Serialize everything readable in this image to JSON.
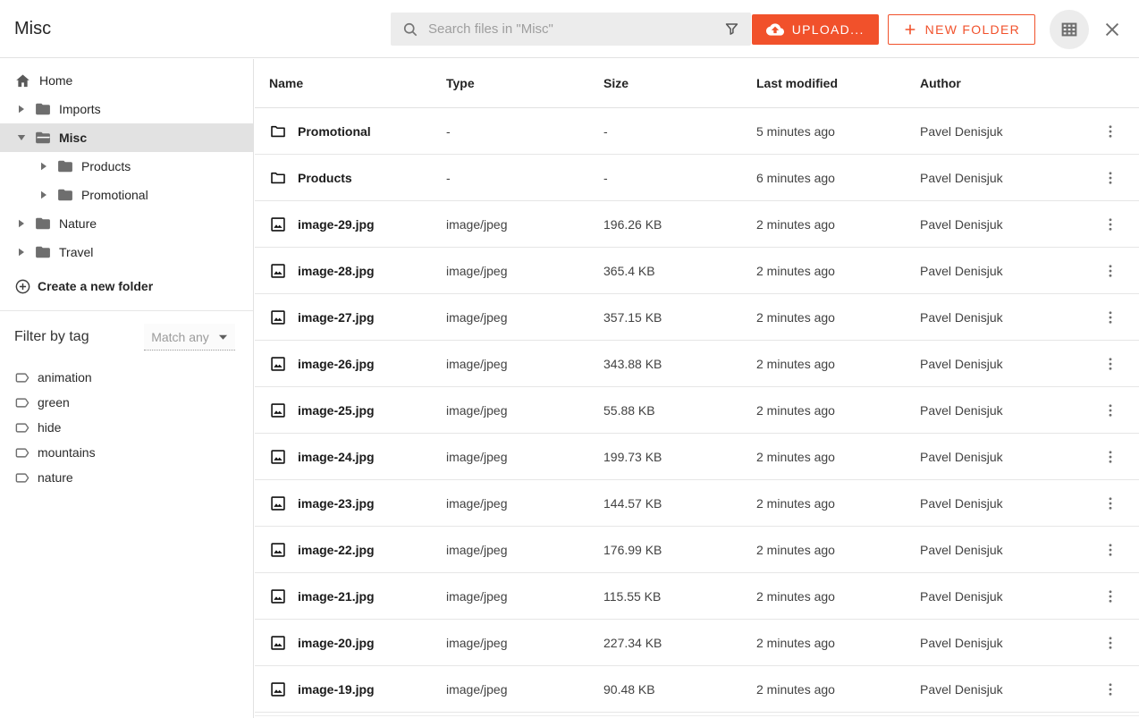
{
  "topbar": {
    "title": "Misc",
    "search_placeholder": "Search files in \"Misc\"",
    "upload_label": "UPLOAD...",
    "new_folder_label": "NEW FOLDER"
  },
  "sidebar": {
    "tree": [
      {
        "label": "Home",
        "icon": "home",
        "caret": "none",
        "depth": 0,
        "selected": false
      },
      {
        "label": "Imports",
        "icon": "folder",
        "caret": "right",
        "depth": 1,
        "selected": false
      },
      {
        "label": "Misc",
        "icon": "folder-open",
        "caret": "down",
        "depth": 1,
        "selected": true
      },
      {
        "label": "Products",
        "icon": "folder",
        "caret": "right",
        "depth": 2,
        "selected": false
      },
      {
        "label": "Promotional",
        "icon": "folder",
        "caret": "right",
        "depth": 2,
        "selected": false
      },
      {
        "label": "Nature",
        "icon": "folder",
        "caret": "right",
        "depth": 1,
        "selected": false
      },
      {
        "label": "Travel",
        "icon": "folder",
        "caret": "right",
        "depth": 1,
        "selected": false
      }
    ],
    "create_folder_label": "Create a new folder",
    "filter_by_tag_label": "Filter by tag",
    "tag_match_mode": "Match any",
    "tags": [
      "animation",
      "green",
      "hide",
      "mountains",
      "nature"
    ]
  },
  "table": {
    "columns": [
      "Name",
      "Type",
      "Size",
      "Last modified",
      "Author"
    ],
    "rows": [
      {
        "name": "Promotional",
        "kind": "folder",
        "type": "-",
        "size": "-",
        "modified": "5 minutes ago",
        "author": "Pavel Denisjuk"
      },
      {
        "name": "Products",
        "kind": "folder",
        "type": "-",
        "size": "-",
        "modified": "6 minutes ago",
        "author": "Pavel Denisjuk"
      },
      {
        "name": "image-29.jpg",
        "kind": "image",
        "type": "image/jpeg",
        "size": "196.26 KB",
        "modified": "2 minutes ago",
        "author": "Pavel Denisjuk"
      },
      {
        "name": "image-28.jpg",
        "kind": "image",
        "type": "image/jpeg",
        "size": "365.4 KB",
        "modified": "2 minutes ago",
        "author": "Pavel Denisjuk"
      },
      {
        "name": "image-27.jpg",
        "kind": "image",
        "type": "image/jpeg",
        "size": "357.15 KB",
        "modified": "2 minutes ago",
        "author": "Pavel Denisjuk"
      },
      {
        "name": "image-26.jpg",
        "kind": "image",
        "type": "image/jpeg",
        "size": "343.88 KB",
        "modified": "2 minutes ago",
        "author": "Pavel Denisjuk"
      },
      {
        "name": "image-25.jpg",
        "kind": "image",
        "type": "image/jpeg",
        "size": "55.88 KB",
        "modified": "2 minutes ago",
        "author": "Pavel Denisjuk"
      },
      {
        "name": "image-24.jpg",
        "kind": "image",
        "type": "image/jpeg",
        "size": "199.73 KB",
        "modified": "2 minutes ago",
        "author": "Pavel Denisjuk"
      },
      {
        "name": "image-23.jpg",
        "kind": "image",
        "type": "image/jpeg",
        "size": "144.57 KB",
        "modified": "2 minutes ago",
        "author": "Pavel Denisjuk"
      },
      {
        "name": "image-22.jpg",
        "kind": "image",
        "type": "image/jpeg",
        "size": "176.99 KB",
        "modified": "2 minutes ago",
        "author": "Pavel Denisjuk"
      },
      {
        "name": "image-21.jpg",
        "kind": "image",
        "type": "image/jpeg",
        "size": "115.55 KB",
        "modified": "2 minutes ago",
        "author": "Pavel Denisjuk"
      },
      {
        "name": "image-20.jpg",
        "kind": "image",
        "type": "image/jpeg",
        "size": "227.34 KB",
        "modified": "2 minutes ago",
        "author": "Pavel Denisjuk"
      },
      {
        "name": "image-19.jpg",
        "kind": "image",
        "type": "image/jpeg",
        "size": "90.48 KB",
        "modified": "2 minutes ago",
        "author": "Pavel Denisjuk"
      }
    ]
  },
  "colors": {
    "accent": "#f1512b",
    "selected_bg": "#e2e2e2",
    "search_bg": "#ececec"
  }
}
